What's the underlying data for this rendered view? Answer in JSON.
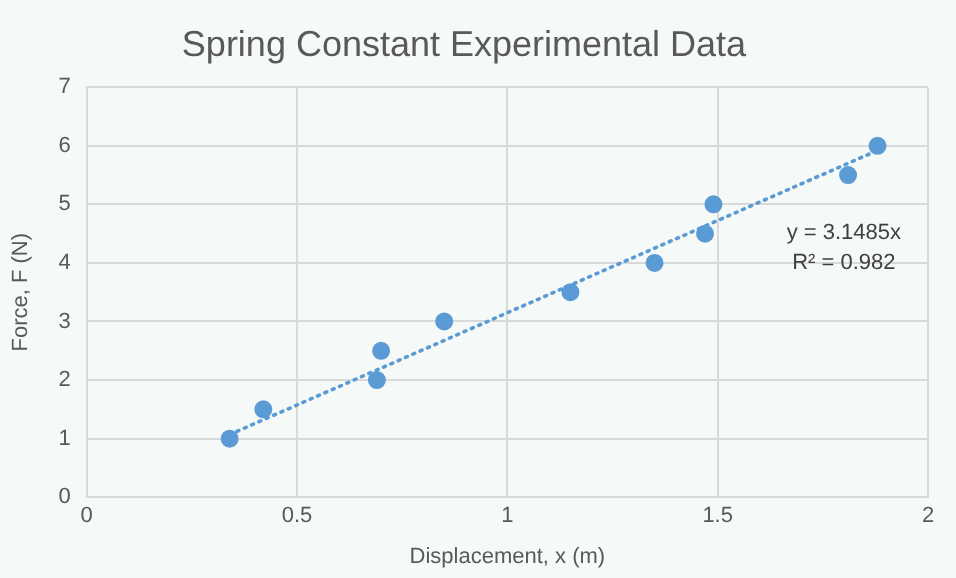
{
  "chart_data": {
    "type": "scatter",
    "title": "Spring Constant Experimental Data",
    "xlabel": "Displacement, x (m)",
    "ylabel": "Force, F (N)",
    "series": [
      {
        "color": "#5b9bd5",
        "x": [
          0.34,
          0.42,
          0.69,
          0.7,
          0.85,
          1.15,
          1.35,
          1.47,
          1.49,
          1.81,
          1.88
        ],
        "values": [
          1,
          1.5,
          2,
          2.5,
          3,
          3.5,
          4,
          4.5,
          5,
          5.5,
          6
        ],
        "marker": "circle"
      },
      {
        "type": "line",
        "color": "#5b9bd5",
        "x": [
          0.34,
          1.88
        ],
        "values": [
          1.07,
          5.92
        ],
        "line_style": "dotted",
        "marker": "none"
      }
    ],
    "xlim": [
      0,
      2
    ],
    "xticks": [
      0,
      0.5,
      1,
      1.5,
      2
    ],
    "ylim": [
      0,
      7
    ],
    "yticks": [
      0,
      1,
      2,
      3,
      4,
      5,
      6,
      7
    ],
    "grid": true,
    "legend": false,
    "annotations": [
      "y = 3.1485x",
      "R² = 0.982"
    ]
  }
}
